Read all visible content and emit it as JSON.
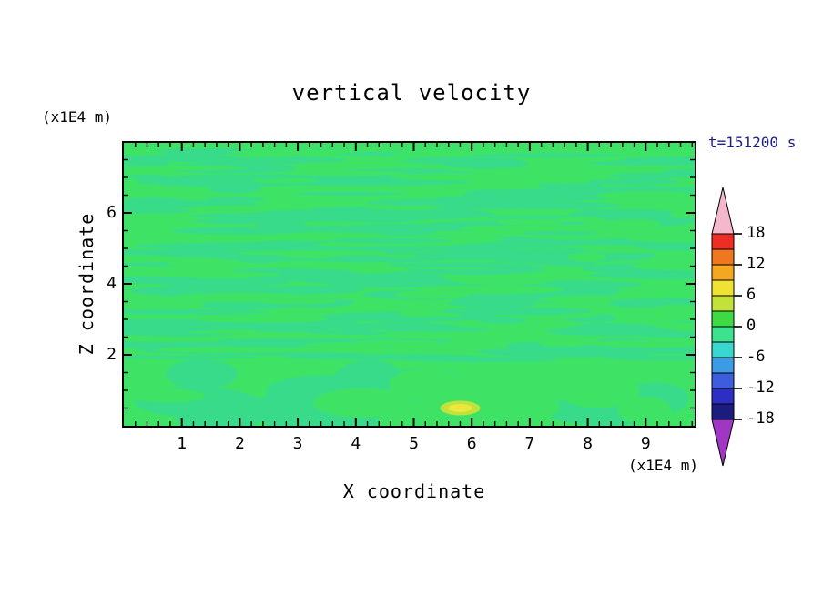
{
  "title": "vertical velocity",
  "time_label": "t=151200 s",
  "axes": {
    "x": {
      "label": "X coordinate",
      "unit": "(x1E4 m)",
      "ticks": [
        "1",
        "2",
        "3",
        "4",
        "5",
        "6",
        "7",
        "8",
        "9"
      ],
      "range": [
        0,
        9.85
      ]
    },
    "z": {
      "label": "Z coordinate",
      "unit": "(x1E4 m)",
      "ticks": [
        "2",
        "4",
        "6"
      ],
      "range": [
        0,
        8
      ]
    }
  },
  "colorbar": {
    "labels": [
      "18",
      "12",
      "6",
      "0",
      "-6",
      "-12",
      "-18"
    ],
    "levels": [
      18,
      15,
      12,
      9,
      6,
      3,
      0,
      -3,
      -6,
      -9,
      -12,
      -15,
      -18
    ],
    "segment_colors": [
      "#ee2e24",
      "#f0761f",
      "#f4a71f",
      "#f0e232",
      "#c2e23a",
      "#3eda44",
      "#3ce28e",
      "#38d8d0",
      "#3b9be4",
      "#3c5ede",
      "#2c2ec4",
      "#1b1b80"
    ],
    "arrow_top_color": "#f4b8cc",
    "arrow_bottom_color": "#a036c4"
  },
  "chart_data": {
    "type": "heatmap",
    "title": "vertical velocity",
    "xlabel": "X coordinate (x1E4 m)",
    "ylabel": "Z coordinate (x1E4 m)",
    "xlim": [
      0,
      9.85
    ],
    "ylim": [
      0,
      8
    ],
    "time": "t=151200 s",
    "contour_interval": 3,
    "value_range_displayed": [
      -18,
      18
    ],
    "legend_position": "right-colorbar",
    "description": "Filled contour field of vertical velocity. Nearly all values lie in the -3..+3 band: thin horizontal streaks of alternating slightly-positive and slightly-negative green bands above z=2, smoother broad blobs below z=2, and one small positive (yellow, ~6-9) spot near x=5.8, z=0.5.",
    "field": {
      "background_color": "#3ee366",
      "band_color": "#37db8a",
      "spot_ring_color": "#bfe23c",
      "spot_color": "#ece73c",
      "spot_center": {
        "x": 5.8,
        "z": 0.5
      },
      "texture": {
        "seed": 987654321,
        "upper_streaks": 120,
        "upper_breakers": 70,
        "upper_restreaks": 45,
        "boundary_streaks": 6,
        "lower_blobs": 14,
        "lower_breakers": 9
      }
    }
  }
}
